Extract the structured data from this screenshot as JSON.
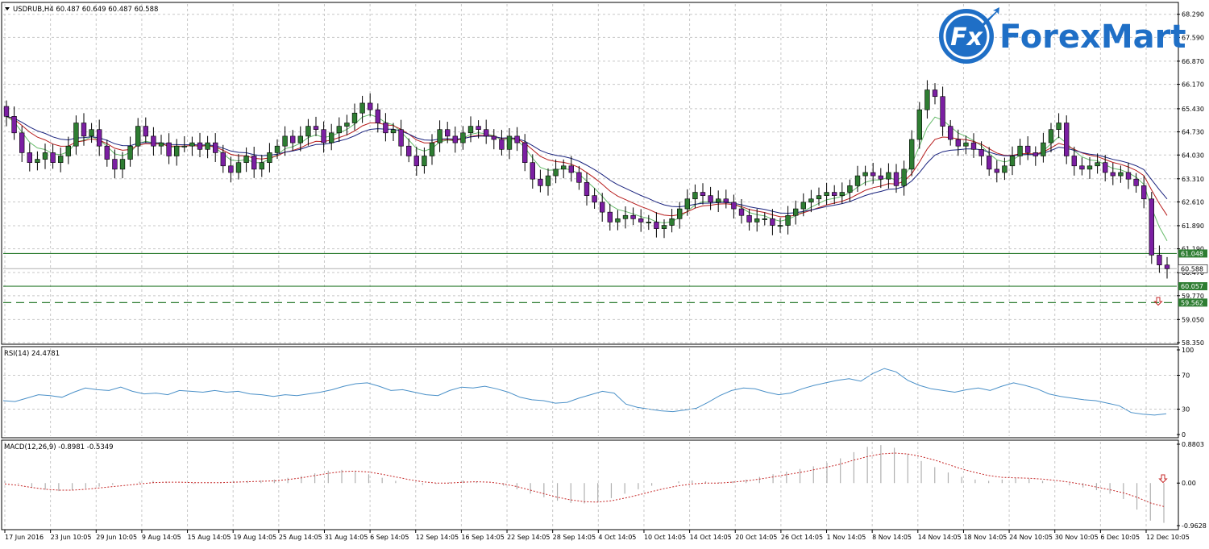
{
  "header": {
    "symbol_line": "USDRUB,H4  60.487 60.649 60.487 60.588",
    "dropdown_icon": "triangle-down-icon"
  },
  "logo": {
    "text_fx": "Fx",
    "text_brand": "ForexMart",
    "color": "#1f6fc6"
  },
  "colors": {
    "bull": "#2e7d32",
    "bear": "#7b1fa2",
    "ma_fast": "#66bb6a",
    "ma_mid": "#b71c1c",
    "ma_slow": "#1a237e",
    "rsi_line": "#4a90c8",
    "macd_signal": "#c62828",
    "macd_hist": "#b0b0b0",
    "grid": "#c8c8c8",
    "level": "#2e7d32"
  },
  "chart_data": [
    {
      "type": "candlestick",
      "name": "USDRUB,H4",
      "ylim": [
        58.35,
        68.6
      ],
      "y_ticks": [
        "68.290",
        "67.590",
        "66.870",
        "66.170",
        "65.430",
        "64.730",
        "64.030",
        "63.310",
        "62.610",
        "61.890",
        "61.190",
        "60.470",
        "59.770",
        "59.050",
        "58.350"
      ],
      "x_ticks": [
        "17 Jun 2016",
        "23 Jun 10:05",
        "29 Jun 10:05",
        "9 Aug 14:05",
        "15 Aug 14:05",
        "19 Aug 14:05",
        "25 Aug 14:05",
        "31 Aug 14:05",
        "6 Sep 14:05",
        "12 Sep 14:05",
        "16 Sep 14:05",
        "22 Sep 14:05",
        "28 Sep 14:05",
        "4 Oct 14:05",
        "10 Oct 14:05",
        "14 Oct 14:05",
        "20 Oct 14:05",
        "26 Oct 14:05",
        "1 Nov 14:05",
        "8 Nov 14:05",
        "14 Nov 14:05",
        "18 Nov 14:05",
        "24 Nov 10:05",
        "30 Nov 10:05",
        "6 Dec 10:05",
        "12 Dec 10:05"
      ],
      "closes": [
        65.2,
        64.7,
        64.1,
        63.8,
        63.9,
        64.1,
        63.8,
        64.0,
        64.3,
        65.0,
        64.6,
        64.8,
        64.3,
        63.9,
        63.6,
        63.9,
        64.3,
        64.9,
        64.6,
        64.3,
        64.4,
        64.0,
        64.3,
        64.3,
        64.4,
        64.2,
        64.4,
        64.1,
        63.7,
        63.5,
        63.8,
        64.0,
        63.6,
        63.8,
        64.1,
        64.3,
        64.6,
        64.4,
        64.6,
        64.9,
        64.8,
        64.4,
        64.7,
        64.9,
        65.0,
        65.3,
        65.6,
        65.4,
        65.0,
        64.7,
        64.8,
        64.3,
        64.0,
        63.7,
        64.0,
        64.4,
        64.8,
        64.6,
        64.4,
        64.7,
        64.9,
        64.8,
        64.6,
        64.5,
        64.2,
        64.6,
        64.4,
        63.8,
        63.3,
        63.1,
        63.4,
        63.6,
        63.7,
        63.5,
        63.2,
        62.8,
        62.6,
        62.3,
        62.0,
        62.1,
        62.2,
        62.1,
        62.0,
        62.0,
        61.8,
        61.9,
        62.1,
        62.4,
        62.7,
        62.9,
        62.8,
        62.6,
        62.7,
        62.6,
        62.4,
        62.2,
        62.0,
        62.1,
        62.1,
        61.9,
        61.9,
        62.2,
        62.4,
        62.6,
        62.7,
        62.8,
        62.9,
        62.8,
        62.9,
        63.1,
        63.4,
        63.5,
        63.4,
        63.3,
        63.5,
        63.1,
        63.6,
        64.5,
        65.4,
        66.0,
        65.8,
        64.9,
        64.5,
        64.3,
        64.4,
        64.2,
        64.0,
        63.6,
        63.5,
        63.7,
        64.0,
        64.3,
        64.1,
        64.0,
        64.4,
        64.8,
        65.0,
        64.0,
        63.7,
        63.6,
        63.7,
        63.8,
        63.5,
        63.4,
        63.5,
        63.3,
        63.1,
        62.7,
        61.0,
        60.7,
        60.588
      ],
      "last_price": "60.588",
      "levels": [
        {
          "value": 61.048,
          "label": "61.048",
          "style": "solid"
        },
        {
          "value": 60.057,
          "label": "60.057",
          "style": "solid"
        },
        {
          "value": 59.562,
          "label": "59.562",
          "style": "dashed"
        }
      ],
      "moving_averages": [
        "fast",
        "mid",
        "slow"
      ]
    },
    {
      "type": "line",
      "name": "RSI(14)",
      "label": "RSI(14) 24.4781",
      "ylim": [
        0,
        100
      ],
      "y_ticks": [
        "100",
        "70",
        "30",
        "0"
      ],
      "values": [
        40,
        39,
        43,
        47,
        46,
        44,
        50,
        55,
        53,
        52,
        56,
        51,
        48,
        49,
        47,
        52,
        51,
        50,
        52,
        50,
        51,
        48,
        47,
        45,
        47,
        46,
        48,
        50,
        53,
        57,
        60,
        61,
        57,
        52,
        53,
        50,
        47,
        46,
        52,
        56,
        55,
        57,
        54,
        50,
        44,
        41,
        40,
        37,
        38,
        43,
        47,
        51,
        49,
        36,
        32,
        30,
        28,
        27,
        29,
        31,
        38,
        46,
        52,
        55,
        54,
        50,
        47,
        49,
        54,
        58,
        61,
        64,
        66,
        63,
        72,
        78,
        74,
        64,
        58,
        54,
        52,
        50,
        53,
        55,
        52,
        57,
        61,
        58,
        54,
        48,
        45,
        43,
        41,
        40,
        37,
        34,
        26,
        24,
        23,
        24.48
      ]
    },
    {
      "type": "bar+line",
      "name": "MACD(12,26,9)",
      "label": "MACD(12,26,9) -0.8981 -0.5349",
      "ylim": [
        -0.9628,
        0.8803
      ],
      "y_ticks": [
        "0.8803",
        "0.00",
        "-0.9628"
      ],
      "histogram": [
        0.05,
        -0.02,
        -0.1,
        -0.15,
        -0.18,
        -0.16,
        -0.12,
        -0.08,
        -0.04,
        0.0,
        0.03,
        0.05,
        0.03,
        0.0,
        -0.02,
        0.0,
        0.02,
        0.04,
        0.05,
        0.06,
        0.08,
        0.12,
        0.16,
        0.22,
        0.28,
        0.3,
        0.26,
        0.2,
        0.12,
        0.05,
        0.0,
        -0.04,
        -0.02,
        0.02,
        0.06,
        0.04,
        0.0,
        -0.06,
        -0.14,
        -0.24,
        -0.32,
        -0.4,
        -0.45,
        -0.46,
        -0.42,
        -0.34,
        -0.24,
        -0.14,
        -0.06,
        0.0,
        0.04,
        0.06,
        0.04,
        0.02,
        0.04,
        0.08,
        0.14,
        0.2,
        0.26,
        0.32,
        0.38,
        0.46,
        0.56,
        0.7,
        0.82,
        0.86,
        0.8,
        0.66,
        0.5,
        0.36,
        0.24,
        0.14,
        0.08,
        0.05,
        0.08,
        0.12,
        0.1,
        0.05,
        0.0,
        -0.05,
        -0.1,
        -0.16,
        -0.24,
        -0.36,
        -0.6,
        -0.85,
        -0.9
      ],
      "signal": [
        -0.02,
        -0.05,
        -0.1,
        -0.14,
        -0.16,
        -0.16,
        -0.14,
        -0.11,
        -0.08,
        -0.05,
        -0.02,
        0.01,
        0.02,
        0.02,
        0.01,
        0.01,
        0.01,
        0.02,
        0.03,
        0.04,
        0.05,
        0.08,
        0.12,
        0.17,
        0.22,
        0.26,
        0.27,
        0.25,
        0.2,
        0.14,
        0.08,
        0.03,
        0.0,
        0.0,
        0.02,
        0.03,
        0.02,
        -0.02,
        -0.08,
        -0.16,
        -0.24,
        -0.32,
        -0.38,
        -0.42,
        -0.43,
        -0.4,
        -0.34,
        -0.27,
        -0.19,
        -0.12,
        -0.06,
        -0.02,
        0.0,
        0.0,
        0.02,
        0.05,
        0.09,
        0.14,
        0.19,
        0.24,
        0.3,
        0.36,
        0.43,
        0.52,
        0.6,
        0.66,
        0.68,
        0.66,
        0.6,
        0.52,
        0.42,
        0.32,
        0.24,
        0.17,
        0.13,
        0.12,
        0.11,
        0.09,
        0.06,
        0.02,
        -0.03,
        -0.09,
        -0.15,
        -0.22,
        -0.32,
        -0.45,
        -0.53
      ]
    }
  ]
}
